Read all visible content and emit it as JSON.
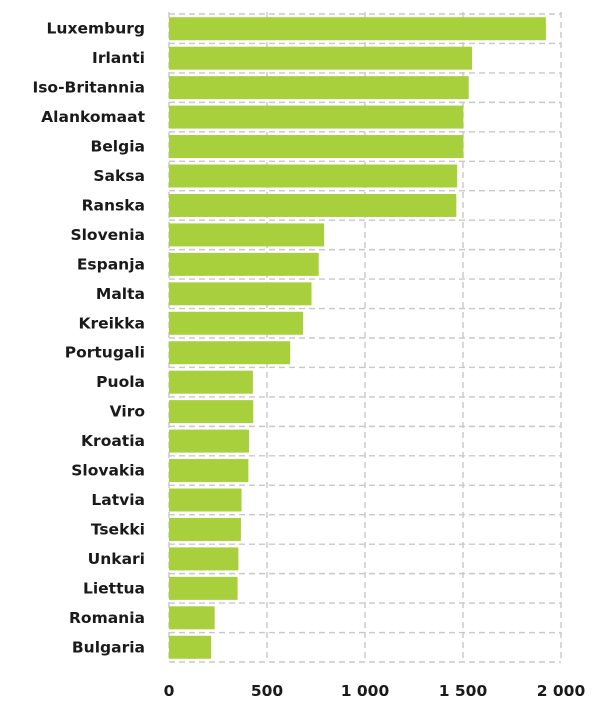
{
  "chart_data": {
    "type": "bar",
    "orientation": "horizontal",
    "title": "",
    "xlabel": "",
    "ylabel": "",
    "categories": [
      "Luxemburg",
      "Irlanti",
      "Iso-Britannia",
      "Alankomaat",
      "Belgia",
      "Saksa",
      "Ranska",
      "Slovenia",
      "Espanja",
      "Malta",
      "Kreikka",
      "Portugali",
      "Puola",
      "Viro",
      "Kroatia",
      "Slovakia",
      "Latvia",
      "Tsekki",
      "Unkari",
      "Liettua",
      "Romania",
      "Bulgaria"
    ],
    "values": [
      1923,
      1546,
      1529,
      1502,
      1502,
      1470,
      1466,
      791,
      764,
      727,
      684,
      618,
      428,
      430,
      408,
      405,
      370,
      367,
      354,
      350,
      233,
      215
    ],
    "xlim": [
      0,
      2000
    ],
    "xticks": [
      0,
      500,
      1000,
      1500,
      2000
    ],
    "xtick_labels": [
      "0",
      "500",
      "1 000",
      "1 500",
      "2 000"
    ],
    "grid": true,
    "bar_color": "#a8cf3c",
    "legend": "none"
  }
}
